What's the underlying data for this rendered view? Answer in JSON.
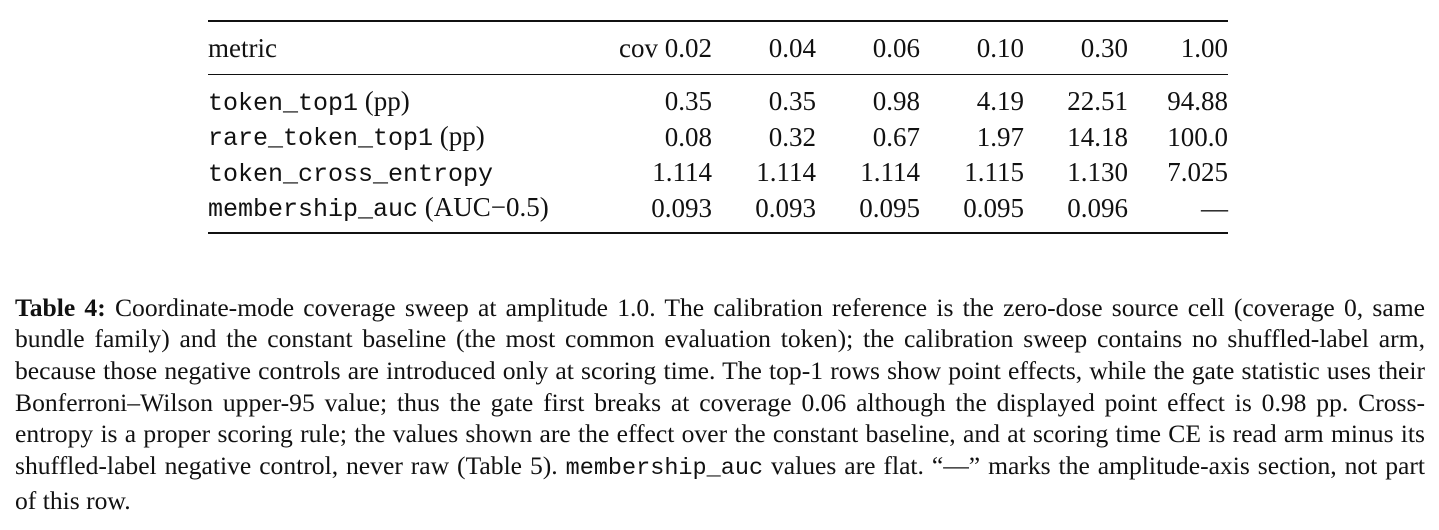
{
  "table": {
    "header": {
      "metric": "metric",
      "columns": [
        "cov 0.02",
        "0.04",
        "0.06",
        "0.10",
        "0.30",
        "1.00"
      ]
    },
    "rows": [
      {
        "code": "token_top1",
        "suffix": "(pp)",
        "values": [
          "0.35",
          "0.35",
          "0.98",
          "4.19",
          "22.51",
          "94.88"
        ]
      },
      {
        "code": "rare_token_top1",
        "suffix": "(pp)",
        "values": [
          "0.08",
          "0.32",
          "0.67",
          "1.97",
          "14.18",
          "100.0"
        ]
      },
      {
        "code": "token_cross_entropy",
        "suffix": "",
        "values": [
          "1.114",
          "1.114",
          "1.114",
          "1.115",
          "1.130",
          "7.025"
        ]
      },
      {
        "code": "membership_auc",
        "suffix": "(AUC−0.5)",
        "values": [
          "0.093",
          "0.093",
          "0.095",
          "0.095",
          "0.096",
          "—"
        ]
      }
    ]
  },
  "caption": {
    "label": "Table 4:",
    "part1": "Coordinate-mode coverage sweep at amplitude 1.0. The calibration reference is the zero-dose source cell (coverage 0, same bundle family) and the constant baseline (the most common evaluation token); the calibration sweep contains no shuffled-label arm, because those negative controls are introduced only at scoring time. The top-1 rows show point effects, while the gate statistic uses their Bonferroni–Wilson upper-95 value; thus the gate first breaks at coverage 0.06 although the displayed point effect is 0.98 pp. Cross-entropy is a proper scoring rule; the values shown are the effect over the constant baseline, and at scoring time CE is read arm minus its shuffled-label negative control, never raw (Table 5).",
    "mono": "membership_auc",
    "part2": "values are flat. “—” marks the amplitude-axis section, not part of this row."
  }
}
